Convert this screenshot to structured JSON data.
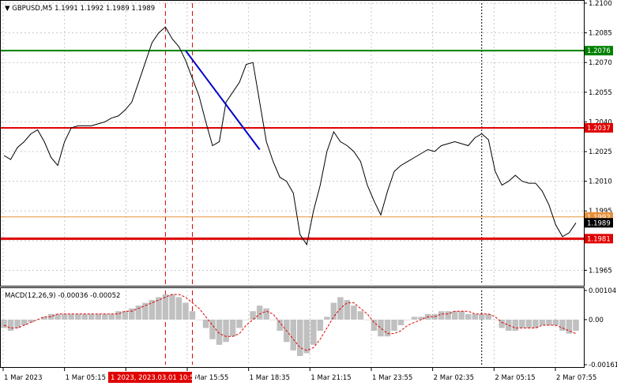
{
  "chart_data": [
    {
      "type": "line",
      "title": "GBPUSD,M5  1.1991 1.1992 1.1989 1.1989",
      "symbol": "GBPUSD,M5",
      "ohlc": [
        "1.1991",
        "1.1992",
        "1.1989",
        "1.1989"
      ],
      "y_ticks": [
        "1.2100",
        "1.2085",
        "1.2070",
        "1.2055",
        "1.2040",
        "1.2025",
        "1.2010",
        "1.1995",
        "1.1980",
        "1.1965"
      ],
      "ylim": [
        1.1958,
        1.21
      ],
      "price_series": [
        1.2023,
        1.2021,
        1.2027,
        1.203,
        1.2034,
        1.2036,
        1.203,
        1.2022,
        1.2018,
        1.203,
        1.2037,
        1.2038,
        1.2038,
        1.2038,
        1.2039,
        1.204,
        1.2042,
        1.2043,
        1.2046,
        1.205,
        1.206,
        1.207,
        1.208,
        1.2085,
        1.2088,
        1.2082,
        1.2078,
        1.2071,
        1.2062,
        1.2053,
        1.204,
        1.2028,
        1.203,
        1.205,
        1.2055,
        1.206,
        1.2069,
        1.207,
        1.205,
        1.203,
        1.202,
        1.2012,
        1.201,
        1.2004,
        1.1983,
        1.1978,
        1.1995,
        1.2008,
        1.2025,
        1.2035,
        1.203,
        1.2028,
        1.2025,
        1.202,
        1.2008,
        1.2,
        1.1993,
        1.2005,
        1.2015,
        1.2018,
        1.202,
        1.2022,
        1.2024,
        1.2026,
        1.2025,
        1.2028,
        1.2029,
        1.203,
        1.2029,
        1.2028,
        1.2032,
        1.2034,
        1.2031,
        1.2015,
        1.2008,
        1.201,
        1.2013,
        1.201,
        1.2009,
        1.2009,
        1.2005,
        1.1998,
        1.1988,
        1.1982,
        1.1984,
        1.1989
      ],
      "levels": [
        {
          "value": 1.2076,
          "label": "1.2076",
          "color": "#008000"
        },
        {
          "value": 1.2037,
          "label": "1.2037",
          "color": "#e00000"
        },
        {
          "value": 1.1992,
          "label": "1.1992",
          "color": "#e8903a"
        },
        {
          "value": 1.1989,
          "label": "1.1989",
          "color": "#000000"
        },
        {
          "value": 1.1981,
          "label": "1.1981",
          "color": "#e00000"
        }
      ],
      "trend_line": {
        "from_index": 27,
        "to_index": 38,
        "from_value": 1.2076,
        "to_value": 1.2026,
        "color": "#0000cc"
      },
      "event_markers": [
        {
          "index": 24,
          "color": "#e00000",
          "style": "dashed"
        },
        {
          "index": 28,
          "color": "#e00000",
          "style": "dashed"
        },
        {
          "index": 71,
          "color": "#000000",
          "style": "dotted"
        }
      ],
      "grid": true
    },
    {
      "type": "bar",
      "title": "MACD(12,26,9) -0.00036 -0.00052",
      "y_ticks": [
        "0.00104",
        "0.00",
        "-0.00161"
      ],
      "ylim": [
        -0.00161,
        0.00104
      ],
      "histogram": [
        -0.0003,
        -0.0004,
        -0.0003,
        -0.0002,
        -0.0001,
        0.0,
        0.0001,
        0.0002,
        0.0002,
        0.0002,
        0.0002,
        0.0002,
        0.0002,
        0.0002,
        0.0002,
        0.0002,
        0.0002,
        0.0003,
        0.0003,
        0.0004,
        0.0005,
        0.0006,
        0.0007,
        0.0008,
        0.0009,
        0.0009,
        0.0008,
        0.0006,
        0.0003,
        0.0,
        -0.0003,
        -0.0007,
        -0.0009,
        -0.0008,
        -0.0006,
        -0.0003,
        0.0,
        0.0003,
        0.0005,
        0.0004,
        0.0,
        -0.0004,
        -0.0008,
        -0.0011,
        -0.0013,
        -0.0012,
        -0.0009,
        -0.0004,
        0.0001,
        0.0006,
        0.0008,
        0.0007,
        0.0005,
        0.0003,
        0.0,
        -0.0004,
        -0.0006,
        -0.0006,
        -0.0004,
        -0.0002,
        0.0,
        0.0001,
        0.0001,
        0.0002,
        0.0002,
        0.0003,
        0.0003,
        0.0003,
        0.0003,
        0.0002,
        0.0002,
        0.0002,
        0.0002,
        0.0,
        -0.0003,
        -0.0004,
        -0.0004,
        -0.0003,
        -0.0003,
        -0.0003,
        -0.0002,
        -0.0002,
        -0.0002,
        -0.0004,
        -0.0005,
        -0.0004
      ],
      "signal": [
        -0.0002,
        -0.0003,
        -0.0003,
        -0.0002,
        -0.0001,
        0.0,
        0.0001,
        0.0001,
        0.0002,
        0.0002,
        0.0002,
        0.0002,
        0.0002,
        0.0002,
        0.0002,
        0.0002,
        0.0002,
        0.0002,
        0.0003,
        0.0003,
        0.0004,
        0.0005,
        0.0006,
        0.0007,
        0.0008,
        0.0009,
        0.0009,
        0.0008,
        0.0006,
        0.0004,
        0.0001,
        -0.0002,
        -0.0005,
        -0.0006,
        -0.0006,
        -0.0005,
        -0.0002,
        0.0,
        0.0002,
        0.0003,
        0.0002,
        -0.0001,
        -0.0004,
        -0.0007,
        -0.001,
        -0.0011,
        -0.001,
        -0.0007,
        -0.0003,
        0.0001,
        0.0004,
        0.0006,
        0.0006,
        0.0004,
        0.0002,
        -0.0001,
        -0.0003,
        -0.0005,
        -0.0005,
        -0.0004,
        -0.0002,
        -0.0001,
        0.0,
        0.0001,
        0.0001,
        0.0002,
        0.0002,
        0.0003,
        0.0003,
        0.0003,
        0.0002,
        0.0002,
        0.0002,
        0.0001,
        -0.0001,
        -0.0002,
        -0.0003,
        -0.0003,
        -0.0003,
        -0.0003,
        -0.0002,
        -0.0002,
        -0.0002,
        -0.0003,
        -0.0004,
        -0.0005
      ]
    }
  ],
  "x_axis": {
    "labels": [
      "1 Mar 2023",
      "1 Mar 05:15",
      "1 Mar 13:15",
      "1 Mar 15:55",
      "1 Mar 18:35",
      "1 Mar 21:15",
      "1 Mar 23:55",
      "2 Mar 02:35",
      "2 Mar 05:15",
      "2 Mar 07:55"
    ],
    "highlight": "1 2023, 2023.03.01 10:55"
  },
  "colors": {
    "price": "#000000",
    "grid": "#c8c8c8",
    "histogram": "#c0c0c0",
    "signal": "#e00000"
  }
}
